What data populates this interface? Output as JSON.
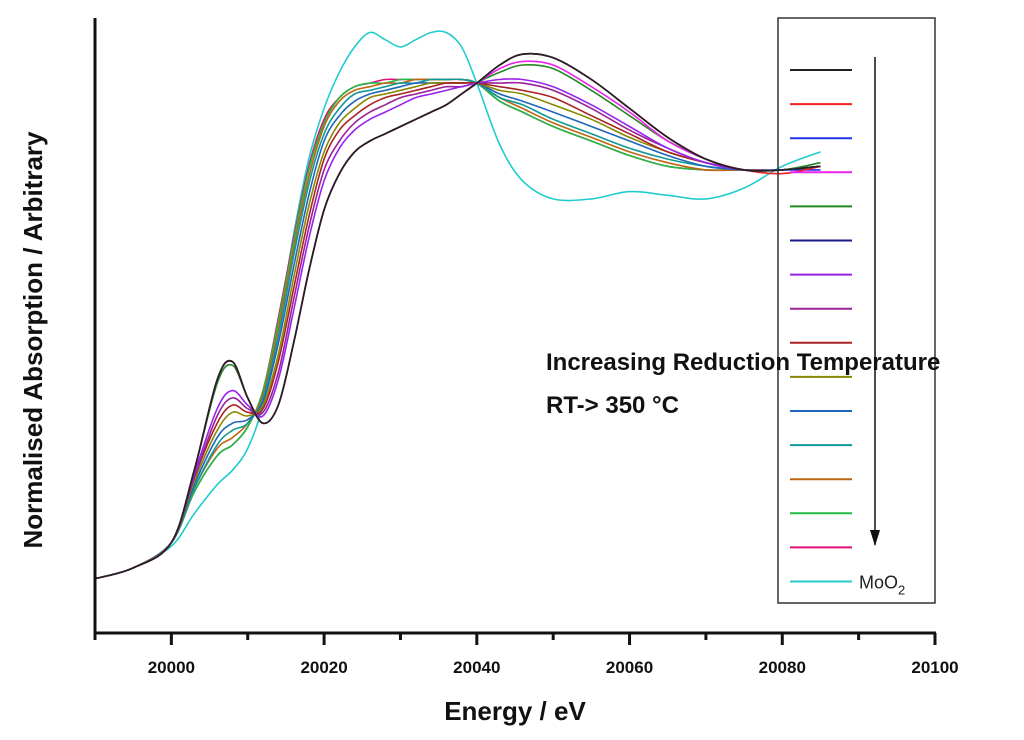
{
  "chart_data": {
    "type": "line",
    "title": "",
    "xlabel": "Energy / eV",
    "ylabel": "Normalised Absorption / Arbitrary",
    "xlim": [
      19990,
      20100
    ],
    "ylim": [
      -0.15,
      1.55
    ],
    "x_ticks": [
      20000,
      20020,
      20040,
      20060,
      20080,
      20100
    ],
    "x_tick_labels": [
      "20000",
      "20020",
      "20040",
      "20060",
      "20080",
      "20100"
    ],
    "x_minor_ticks": [
      20010,
      20030,
      20050,
      20070,
      20090
    ],
    "y_ticks": [],
    "grid": false,
    "legend_position": "right",
    "annotation": {
      "line1": "Increasing Reduction Temperature",
      "line2": "RT-> 350 °C",
      "arrow": "down"
    },
    "x": [
      19990,
      19995,
      20000,
      20003,
      20006,
      20008,
      20010,
      20012,
      20014,
      20016,
      20018,
      20020,
      20022,
      20024,
      20026,
      20028,
      20030,
      20032,
      20034,
      20036,
      20038,
      20040,
      20043,
      20046,
      20050,
      20055,
      20060,
      20065,
      20070,
      20075,
      20080,
      20085
    ],
    "series": [
      {
        "name": "",
        "color": "#222222",
        "values": [
          0.0,
          0.03,
          0.1,
          0.3,
          0.55,
          0.6,
          0.5,
          0.43,
          0.48,
          0.65,
          0.85,
          1.02,
          1.12,
          1.18,
          1.21,
          1.23,
          1.25,
          1.27,
          1.29,
          1.31,
          1.34,
          1.37,
          1.42,
          1.45,
          1.44,
          1.38,
          1.3,
          1.22,
          1.16,
          1.13,
          1.13,
          1.14
        ]
      },
      {
        "name": "",
        "color": "#ee2222",
        "values": [
          0.0,
          0.03,
          0.1,
          0.3,
          0.55,
          0.6,
          0.5,
          0.43,
          0.48,
          0.65,
          0.85,
          1.02,
          1.12,
          1.18,
          1.21,
          1.23,
          1.25,
          1.27,
          1.29,
          1.31,
          1.34,
          1.37,
          1.42,
          1.45,
          1.44,
          1.38,
          1.3,
          1.22,
          1.16,
          1.13,
          1.12,
          1.14
        ]
      },
      {
        "name": "",
        "color": "#2233ee",
        "values": [
          0.0,
          0.03,
          0.1,
          0.3,
          0.55,
          0.6,
          0.5,
          0.43,
          0.48,
          0.65,
          0.85,
          1.02,
          1.12,
          1.18,
          1.21,
          1.23,
          1.25,
          1.27,
          1.29,
          1.31,
          1.34,
          1.37,
          1.42,
          1.45,
          1.44,
          1.38,
          1.3,
          1.22,
          1.16,
          1.13,
          1.13,
          1.13
        ]
      },
      {
        "name": "",
        "color": "#ee22ee",
        "values": [
          0.0,
          0.03,
          0.1,
          0.3,
          0.55,
          0.6,
          0.5,
          0.43,
          0.48,
          0.65,
          0.85,
          1.02,
          1.12,
          1.18,
          1.21,
          1.23,
          1.25,
          1.27,
          1.29,
          1.31,
          1.34,
          1.37,
          1.41,
          1.43,
          1.42,
          1.36,
          1.29,
          1.21,
          1.16,
          1.13,
          1.13,
          1.14
        ]
      },
      {
        "name": "",
        "color": "#228822",
        "values": [
          0.0,
          0.03,
          0.1,
          0.3,
          0.54,
          0.59,
          0.5,
          0.43,
          0.48,
          0.65,
          0.85,
          1.02,
          1.12,
          1.18,
          1.21,
          1.23,
          1.25,
          1.27,
          1.29,
          1.31,
          1.34,
          1.37,
          1.4,
          1.42,
          1.41,
          1.35,
          1.28,
          1.21,
          1.16,
          1.13,
          1.13,
          1.15
        ]
      },
      {
        "name": "",
        "color": "#1a1a88",
        "values": [
          0.0,
          0.03,
          0.1,
          0.3,
          0.55,
          0.6,
          0.5,
          0.43,
          0.48,
          0.65,
          0.85,
          1.02,
          1.12,
          1.18,
          1.21,
          1.23,
          1.25,
          1.27,
          1.29,
          1.31,
          1.34,
          1.37,
          1.42,
          1.45,
          1.44,
          1.38,
          1.3,
          1.22,
          1.16,
          1.13,
          1.13,
          1.14
        ]
      },
      {
        "name": "",
        "color": "#9922ee",
        "values": [
          0.0,
          0.03,
          0.1,
          0.29,
          0.47,
          0.52,
          0.48,
          0.45,
          0.55,
          0.74,
          0.94,
          1.1,
          1.19,
          1.24,
          1.27,
          1.29,
          1.31,
          1.33,
          1.34,
          1.35,
          1.36,
          1.37,
          1.38,
          1.38,
          1.36,
          1.31,
          1.25,
          1.19,
          1.15,
          1.13,
          1.13,
          1.14
        ]
      },
      {
        "name": "",
        "color": "#992299",
        "values": [
          0.0,
          0.03,
          0.1,
          0.28,
          0.45,
          0.5,
          0.47,
          0.46,
          0.57,
          0.77,
          0.97,
          1.13,
          1.21,
          1.26,
          1.29,
          1.31,
          1.33,
          1.34,
          1.35,
          1.36,
          1.36,
          1.37,
          1.37,
          1.37,
          1.35,
          1.3,
          1.24,
          1.19,
          1.15,
          1.13,
          1.13,
          1.14
        ]
      },
      {
        "name": "",
        "color": "#aa2222",
        "values": [
          0.0,
          0.03,
          0.1,
          0.28,
          0.43,
          0.48,
          0.46,
          0.47,
          0.6,
          0.8,
          1.0,
          1.16,
          1.24,
          1.28,
          1.31,
          1.33,
          1.34,
          1.35,
          1.36,
          1.37,
          1.37,
          1.37,
          1.36,
          1.35,
          1.33,
          1.28,
          1.23,
          1.18,
          1.15,
          1.13,
          1.13,
          1.14
        ]
      },
      {
        "name": "",
        "color": "#888800",
        "values": [
          0.0,
          0.03,
          0.1,
          0.27,
          0.41,
          0.46,
          0.45,
          0.48,
          0.62,
          0.83,
          1.03,
          1.18,
          1.26,
          1.3,
          1.33,
          1.34,
          1.35,
          1.36,
          1.37,
          1.37,
          1.37,
          1.37,
          1.35,
          1.34,
          1.31,
          1.27,
          1.22,
          1.18,
          1.15,
          1.13,
          1.13,
          1.14
        ]
      },
      {
        "name": "",
        "color": "#1f66bb",
        "values": [
          0.0,
          0.03,
          0.1,
          0.26,
          0.39,
          0.43,
          0.44,
          0.49,
          0.65,
          0.86,
          1.06,
          1.21,
          1.28,
          1.32,
          1.34,
          1.35,
          1.36,
          1.37,
          1.37,
          1.37,
          1.37,
          1.37,
          1.34,
          1.32,
          1.29,
          1.25,
          1.21,
          1.17,
          1.14,
          1.13,
          1.13,
          1.14
        ]
      },
      {
        "name": "",
        "color": "#119999",
        "values": [
          0.0,
          0.03,
          0.1,
          0.25,
          0.37,
          0.41,
          0.43,
          0.5,
          0.67,
          0.89,
          1.09,
          1.23,
          1.3,
          1.34,
          1.35,
          1.36,
          1.37,
          1.37,
          1.38,
          1.38,
          1.38,
          1.37,
          1.33,
          1.31,
          1.27,
          1.23,
          1.19,
          1.16,
          1.14,
          1.13,
          1.13,
          1.14
        ]
      },
      {
        "name": "",
        "color": "#bb6611",
        "values": [
          0.0,
          0.03,
          0.1,
          0.25,
          0.36,
          0.39,
          0.43,
          0.51,
          0.69,
          0.91,
          1.11,
          1.25,
          1.32,
          1.35,
          1.36,
          1.37,
          1.37,
          1.38,
          1.38,
          1.38,
          1.38,
          1.37,
          1.33,
          1.3,
          1.26,
          1.22,
          1.18,
          1.15,
          1.13,
          1.13,
          1.13,
          1.14
        ]
      },
      {
        "name": "",
        "color": "#22bb44",
        "values": [
          0.0,
          0.03,
          0.1,
          0.24,
          0.34,
          0.37,
          0.42,
          0.52,
          0.71,
          0.93,
          1.13,
          1.26,
          1.33,
          1.36,
          1.37,
          1.37,
          1.38,
          1.38,
          1.38,
          1.38,
          1.38,
          1.37,
          1.32,
          1.29,
          1.25,
          1.21,
          1.17,
          1.14,
          1.13,
          1.13,
          1.13,
          1.14
        ]
      },
      {
        "name": "",
        "color": "#dd1177",
        "values": [
          0.0,
          0.03,
          0.1,
          0.24,
          0.34,
          0.37,
          0.42,
          0.52,
          0.72,
          0.94,
          1.14,
          1.27,
          1.33,
          1.36,
          1.37,
          1.38,
          1.38,
          1.38,
          1.38,
          1.38,
          1.38,
          1.37,
          1.32,
          1.29,
          1.25,
          1.21,
          1.17,
          1.14,
          1.13,
          1.13,
          1.13,
          1.14
        ]
      },
      {
        "name": "MoO2",
        "color": "#22cccc",
        "values": [
          0.0,
          0.03,
          0.09,
          0.18,
          0.26,
          0.3,
          0.36,
          0.48,
          0.7,
          0.95,
          1.16,
          1.3,
          1.4,
          1.47,
          1.51,
          1.49,
          1.47,
          1.49,
          1.51,
          1.51,
          1.47,
          1.37,
          1.2,
          1.1,
          1.05,
          1.05,
          1.07,
          1.06,
          1.05,
          1.08,
          1.14,
          1.18
        ]
      }
    ]
  }
}
